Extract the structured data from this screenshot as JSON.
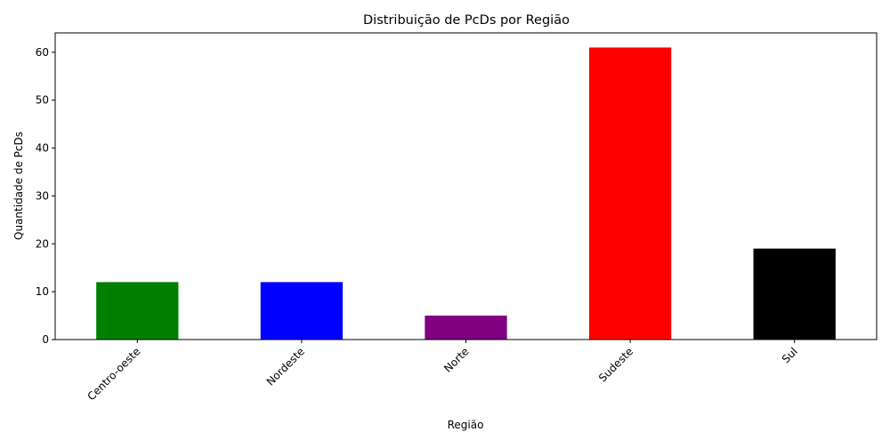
{
  "chart_data": {
    "type": "bar",
    "title": "Distribuição de PcDs por Região",
    "xlabel": "Região",
    "ylabel": "Quantidade de PcDs",
    "categories": [
      "Centro-oeste",
      "Nordeste",
      "Norte",
      "Sudeste",
      "Sul"
    ],
    "values": [
      12,
      12,
      5,
      61,
      19
    ],
    "colors": [
      "#008000",
      "#0000ff",
      "#800080",
      "#ff0000",
      "#000000"
    ],
    "ylim": [
      0,
      64.05
    ],
    "yticks": [
      0,
      10,
      20,
      30,
      40,
      50,
      60
    ],
    "xtick_rotation_deg": 45,
    "grid": false,
    "legend": "none"
  }
}
